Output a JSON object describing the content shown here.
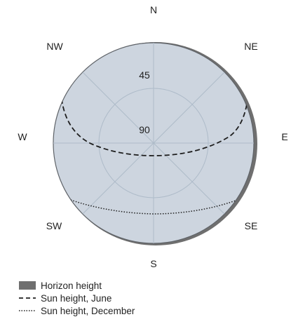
{
  "directions": {
    "n": "N",
    "ne": "NE",
    "e": "E",
    "se": "SE",
    "s": "S",
    "sw": "SW",
    "w": "W",
    "nw": "NW"
  },
  "rings": {
    "ring_45": "45",
    "ring_90": "90"
  },
  "legend": [
    {
      "label": "Horizon height",
      "style": "solid-fill"
    },
    {
      "label": "Sun height, June",
      "style": "dashed"
    },
    {
      "label": "Sun height, December",
      "style": "dotted"
    }
  ],
  "colors": {
    "sky": "#cdd5df",
    "horizon": "#6f6f6f",
    "grid": "#aebbc9",
    "curve": "#1e1e1e",
    "outline": "#555555"
  }
}
